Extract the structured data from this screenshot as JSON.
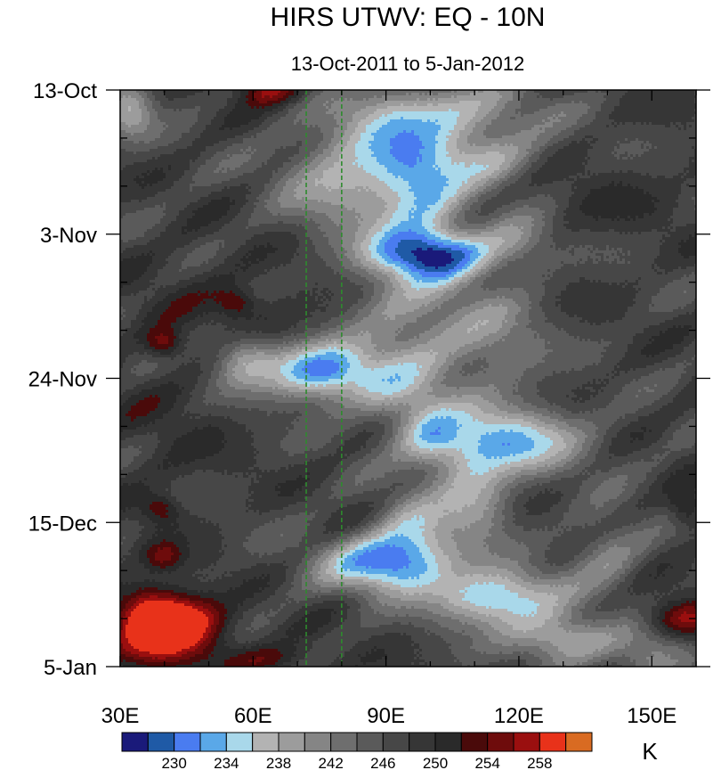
{
  "chart_data": {
    "type": "heatmap",
    "title": "HIRS UTWV: EQ - 10N",
    "subtitle": "13-Oct-2011 to 5-Jan-2012",
    "x_axis": {
      "range": [
        30,
        160
      ],
      "ticks": [
        30,
        60,
        90,
        120,
        150
      ],
      "tick_labels": [
        "30E",
        "60E",
        "90E",
        "120E",
        "150E"
      ],
      "minor_step": 10
    },
    "y_axis": {
      "range_days": [
        0,
        84
      ],
      "direction": "time increases downward",
      "ticks": [
        0,
        21,
        42,
        63,
        84
      ],
      "tick_labels": [
        "13-Oct",
        "3-Nov",
        "24-Nov",
        "15-Dec",
        "5-Jan"
      ],
      "minor_step": 7
    },
    "reference_lines": {
      "longitudes": [
        72,
        80
      ],
      "style": "dashed",
      "color": "#2e8b2e"
    },
    "colorbar": {
      "unit": "K",
      "levels": [
        228,
        230,
        232,
        234,
        236,
        238,
        240,
        242,
        244,
        246,
        248,
        250,
        252,
        254,
        256,
        258
      ],
      "label_values": [
        230,
        234,
        238,
        242,
        246,
        250,
        254,
        258
      ],
      "label_texts": [
        "230",
        "234",
        "238",
        "242",
        "246",
        "250",
        "254",
        "258"
      ],
      "colors": [
        "#1a1a7a",
        "#1f5aa6",
        "#4a7cf0",
        "#5aa8e8",
        "#a9d8ea",
        "#b3b3b3",
        "#9c9c9c",
        "#858585",
        "#6e6e6e",
        "#5a5a5a",
        "#474747",
        "#363636",
        "#2a2a2a",
        "#4a0a0a",
        "#6e0c0c",
        "#9a0f0f",
        "#e8321a",
        "#d96b22"
      ]
    },
    "field": {
      "description": "Upper tropospheric brightness temperature (K), day vs longitude",
      "background_K": 247.5,
      "anomalies": [
        {
          "lon": 105,
          "day": 3,
          "sx": 14,
          "sy": 3,
          "amp": -9
        },
        {
          "lon": 112,
          "day": 10,
          "sx": 10,
          "sy": 3,
          "amp": -8
        },
        {
          "lon": 92,
          "day": 7,
          "sx": 9,
          "sy": 4,
          "amp": -8
        },
        {
          "lon": 80,
          "day": 13,
          "sx": 10,
          "sy": 5,
          "amp": -9
        },
        {
          "lon": 98,
          "day": 13,
          "sx": 6,
          "sy": 3,
          "amp": -6
        },
        {
          "lon": 32,
          "day": 3,
          "sx": 4,
          "sy": 3,
          "amp": -9
        },
        {
          "lon": 98,
          "day": 18,
          "sx": 8,
          "sy": 4,
          "amp": -9
        },
        {
          "lon": 100,
          "day": 24,
          "sx": 10,
          "sy": 2.5,
          "amp": -16
        },
        {
          "lon": 120,
          "day": 22,
          "sx": 6,
          "sy": 3,
          "amp": -6
        },
        {
          "lon": 96,
          "day": 33,
          "sx": 10,
          "sy": 6,
          "amp": -8
        },
        {
          "lon": 115,
          "day": 37,
          "sx": 8,
          "sy": 5,
          "amp": -6
        },
        {
          "lon": 75,
          "day": 41,
          "sx": 9,
          "sy": 3,
          "amp": -17
        },
        {
          "lon": 58,
          "day": 39,
          "sx": 5,
          "sy": 3,
          "amp": -8
        },
        {
          "lon": 95,
          "day": 45,
          "sx": 8,
          "sy": 4,
          "amp": -7
        },
        {
          "lon": 118,
          "day": 51,
          "sx": 12,
          "sy": 3.5,
          "amp": -13
        },
        {
          "lon": 100,
          "day": 51,
          "sx": 5,
          "sy": 3,
          "amp": -7
        },
        {
          "lon": 110,
          "day": 59,
          "sx": 6,
          "sy": 5,
          "amp": -9
        },
        {
          "lon": 96,
          "day": 64,
          "sx": 6,
          "sy": 4,
          "amp": -8
        },
        {
          "lon": 90,
          "day": 69,
          "sx": 10,
          "sy": 3,
          "amp": -16
        },
        {
          "lon": 115,
          "day": 74,
          "sx": 10,
          "sy": 3,
          "amp": -15
        },
        {
          "lon": 130,
          "day": 80,
          "sx": 8,
          "sy": 2.5,
          "amp": -11
        },
        {
          "lon": 140,
          "day": 67,
          "sx": 6,
          "sy": 4,
          "amp": -6
        },
        {
          "lon": 150,
          "day": 83,
          "sx": 6,
          "sy": 3,
          "amp": -7
        },
        {
          "lon": 64,
          "day": 34,
          "sx": 10,
          "sy": 3,
          "amp": 3
        },
        {
          "lon": 45,
          "day": 28,
          "sx": 12,
          "sy": 4,
          "amp": 2
        },
        {
          "lon": 138,
          "day": 16,
          "sx": 14,
          "sy": 4,
          "amp": 2
        },
        {
          "lon": 40,
          "day": 50,
          "sx": 10,
          "sy": 8,
          "amp": 2
        },
        {
          "lon": 36,
          "day": 76,
          "sx": 5,
          "sy": 3,
          "amp": 11
        },
        {
          "lon": 45,
          "day": 77,
          "sx": 6,
          "sy": 2.5,
          "amp": 12
        },
        {
          "lon": 40,
          "day": 81,
          "sx": 10,
          "sy": 2.5,
          "amp": 8
        },
        {
          "lon": 64,
          "day": 0,
          "sx": 5,
          "sy": 1.5,
          "amp": 8
        },
        {
          "lon": 40,
          "day": 37,
          "sx": 3,
          "sy": 1.5,
          "amp": 8
        },
        {
          "lon": 56,
          "day": 31,
          "sx": 3,
          "sy": 1.5,
          "amp": 6
        },
        {
          "lon": 39,
          "day": 61,
          "sx": 3,
          "sy": 1.5,
          "amp": 6
        },
        {
          "lon": 40,
          "day": 68,
          "sx": 3,
          "sy": 1.5,
          "amp": 6
        },
        {
          "lon": 157,
          "day": 77,
          "sx": 6,
          "sy": 2,
          "amp": 9
        },
        {
          "lon": 158,
          "day": 61,
          "sx": 3,
          "sy": 2,
          "amp": 6
        },
        {
          "lon": 65,
          "day": 83,
          "sx": 8,
          "sy": 1.5,
          "amp": 5
        }
      ]
    }
  }
}
